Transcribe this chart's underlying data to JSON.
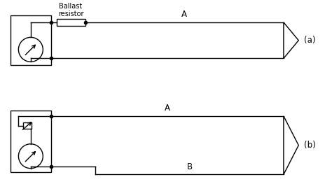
{
  "bg_color": "#ffffff",
  "line_color": "#000000",
  "fig_width": 4.74,
  "fig_height": 2.63,
  "dpi": 100,
  "label_a_top": "A",
  "label_a_bottom": "A",
  "label_b": "B",
  "label_ballast": "Ballast\nresistor",
  "label_diagram_a": "(a)",
  "label_diagram_b": "(b)",
  "ballast_label_fontsize": 7,
  "ab_label_fontsize": 8.5,
  "paren_label_fontsize": 8.5
}
